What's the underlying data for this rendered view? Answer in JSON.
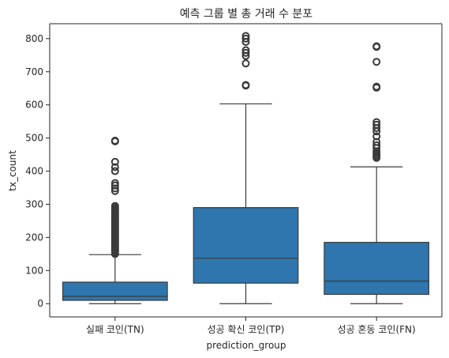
{
  "chart_data": {
    "type": "box",
    "title": "예측 그룹 별 총 거래 수 분포",
    "xlabel": "prediction_group",
    "ylabel": "tx_count",
    "ylim": [
      -40,
      845
    ],
    "yticks": [
      0,
      100,
      200,
      300,
      400,
      500,
      600,
      700,
      800
    ],
    "grid": false,
    "box_color": "#2e76ad",
    "edge_color": "#3a3a3a",
    "categories": [
      "실패 코인(TN)",
      "성공 확신 코인(TP)",
      "성공 혼동 코인(FN)"
    ],
    "boxes": [
      {
        "category": "실패 코인(TN)",
        "whisker_low": 0,
        "q1": 10,
        "median": 22,
        "q3": 65,
        "whisker_high": 148,
        "outliers": [
          150,
          154,
          158,
          162,
          166,
          170,
          174,
          178,
          182,
          186,
          190,
          194,
          198,
          202,
          206,
          210,
          214,
          218,
          222,
          226,
          230,
          234,
          238,
          242,
          246,
          250,
          254,
          258,
          262,
          266,
          270,
          274,
          278,
          282,
          286,
          290,
          295,
          340,
          348,
          357,
          364,
          400,
          412,
          428,
          490,
          492
        ]
      },
      {
        "category": "성공 확신 코인(TP)",
        "whisker_low": 0,
        "q1": 62,
        "median": 137,
        "q3": 290,
        "whisker_high": 603,
        "outliers": [
          658,
          660,
          725,
          748,
          757,
          765,
          790,
          800,
          808
        ]
      },
      {
        "category": "성공 혼동 코인(FN)",
        "whisker_low": 0,
        "q1": 28,
        "median": 68,
        "q3": 185,
        "whisker_high": 413,
        "outliers": [
          440,
          445,
          450,
          455,
          460,
          470,
          478,
          488,
          505,
          520,
          530,
          540,
          548,
          652,
          655,
          730,
          775,
          777
        ]
      }
    ]
  }
}
